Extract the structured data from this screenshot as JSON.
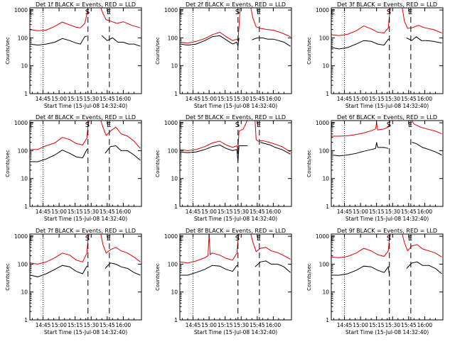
{
  "figure": {
    "axis_labels": {
      "x": "Start Time (15-Jul-08 14:32:40)",
      "y": "Counts/sec"
    },
    "xticks": [
      "14:45",
      "15:00",
      "15:15",
      "15:30",
      "15:45",
      "16:00"
    ],
    "xticks_min": [
      45,
      60,
      75,
      90,
      105,
      120
    ],
    "xlim_min": [
      32.7,
      137
    ],
    "yticks": [
      "1",
      "10",
      "100",
      "1000"
    ],
    "yticks_values": [
      1,
      10,
      100,
      1000
    ],
    "ylim": [
      1,
      1200
    ],
    "marker_labels": {
      "E": "E",
      "S": "S"
    },
    "colors": {
      "events": "#000000",
      "lld": "#e00000",
      "axes": "#000000"
    }
  },
  "chart_data": [
    {
      "type": "line",
      "title": "Det 1f BLACK = Events, RED = LLD",
      "xscale": "minutes",
      "yscale": "log",
      "series": [
        {
          "name": "Events",
          "color": "#000000",
          "x": [
            33,
            40,
            48,
            56,
            63,
            70,
            76,
            80,
            84,
            86,
            86.5,
            96,
            99,
            100,
            105,
            110,
            115,
            120,
            125,
            130,
            136
          ],
          "y": [
            60,
            55,
            60,
            70,
            95,
            80,
            65,
            60,
            110,
            115,
            null,
            null,
            null,
            120,
            80,
            100,
            70,
            70,
            60,
            60,
            50
          ]
        },
        {
          "name": "LLD",
          "color": "#e00000",
          "x": [
            33,
            40,
            48,
            56,
            63,
            70,
            76,
            80,
            84,
            86,
            87,
            88,
            92,
            96,
            99,
            101,
            104,
            108,
            114,
            120,
            128,
            136
          ],
          "y": [
            200,
            180,
            190,
            260,
            370,
            290,
            240,
            230,
            330,
            700,
            1200,
            null,
            null,
            null,
            1200,
            750,
            450,
            400,
            330,
            380,
            280,
            230
          ]
        }
      ],
      "markers": [
        {
          "x": 45,
          "style": "dotted"
        },
        {
          "x": 87,
          "style": "dashed",
          "label": "S"
        },
        {
          "x": 107,
          "style": "dashed",
          "label": "E"
        }
      ]
    },
    {
      "type": "line",
      "title": "Det 2f BLACK = Events, RED = LLD",
      "xscale": "minutes",
      "yscale": "log",
      "series": [
        {
          "name": "Events",
          "color": "#000000",
          "x": [
            33,
            40,
            48,
            56,
            63,
            70,
            76,
            82,
            86,
            87,
            88,
            94,
            96,
            100,
            105,
            110,
            115,
            120,
            125,
            130,
            136
          ],
          "y": [
            60,
            55,
            60,
            80,
            110,
            120,
            85,
            60,
            70,
            50,
            100,
            null,
            null,
            85,
            100,
            100,
            90,
            90,
            80,
            70,
            50
          ]
        },
        {
          "name": "LLD",
          "color": "#e00000",
          "x": [
            33,
            40,
            48,
            56,
            63,
            70,
            76,
            82,
            86,
            87,
            88,
            89,
            93,
            96,
            99,
            101,
            104,
            108,
            114,
            120,
            128,
            136
          ],
          "y": [
            70,
            65,
            75,
            95,
            130,
            160,
            110,
            80,
            90,
            80,
            250,
            1200,
            null,
            null,
            1200,
            500,
            250,
            220,
            200,
            190,
            150,
            110
          ]
        }
      ],
      "markers": [
        {
          "x": 45,
          "style": "dotted"
        },
        {
          "x": 87,
          "style": "dashed",
          "label": "S"
        },
        {
          "x": 107,
          "style": "dashed",
          "label": "E"
        }
      ]
    },
    {
      "type": "line",
      "title": "Det 3f BLACK = Events, RED = LLD",
      "xscale": "minutes",
      "yscale": "log",
      "series": [
        {
          "name": "Events",
          "color": "#000000",
          "x": [
            33,
            40,
            48,
            56,
            63,
            70,
            76,
            82,
            86,
            87,
            88,
            96,
            99,
            103,
            108,
            112,
            117,
            122,
            128,
            136
          ],
          "y": [
            45,
            40,
            45,
            60,
            80,
            75,
            60,
            55,
            90,
            90,
            null,
            null,
            null,
            100,
            80,
            110,
            80,
            80,
            75,
            65
          ]
        },
        {
          "name": "LLD",
          "color": "#e00000",
          "x": [
            33,
            40,
            48,
            56,
            63,
            70,
            76,
            82,
            86,
            87,
            88,
            92,
            96,
            99,
            101,
            104,
            108,
            114,
            120,
            128,
            136
          ],
          "y": [
            130,
            120,
            135,
            180,
            270,
            210,
            160,
            150,
            230,
            600,
            1200,
            null,
            null,
            1200,
            400,
            220,
            230,
            280,
            230,
            200,
            150
          ]
        }
      ],
      "markers": [
        {
          "x": 45,
          "style": "dotted"
        },
        {
          "x": 87,
          "style": "dashed",
          "label": "S"
        },
        {
          "x": 107,
          "style": "dashed",
          "label": "E"
        }
      ]
    },
    {
      "type": "line",
      "title": "Det 4f BLACK = Events, RED = LLD",
      "xscale": "minutes",
      "yscale": "log",
      "series": [
        {
          "name": "Events",
          "color": "#000000",
          "x": [
            33,
            40,
            48,
            56,
            63,
            70,
            76,
            82,
            86,
            87,
            88,
            96,
            99,
            103,
            108,
            113,
            118,
            124,
            130,
            136
          ],
          "y": [
            40,
            40,
            50,
            70,
            105,
            80,
            60,
            55,
            110,
            110,
            null,
            null,
            null,
            80,
            140,
            150,
            100,
            100,
            70,
            45
          ]
        },
        {
          "name": "LLD",
          "color": "#e00000",
          "x": [
            33,
            40,
            48,
            56,
            63,
            70,
            76,
            82,
            86,
            87,
            88,
            92,
            96,
            99,
            101,
            104,
            108,
            113,
            118,
            124,
            130,
            136
          ],
          "y": [
            110,
            110,
            150,
            190,
            300,
            250,
            180,
            160,
            280,
            700,
            1200,
            null,
            null,
            1200,
            700,
            350,
            500,
            700,
            400,
            330,
            220,
            120
          ]
        }
      ],
      "markers": [
        {
          "x": 45,
          "style": "dotted"
        },
        {
          "x": 87,
          "style": "dashed",
          "label": "S"
        },
        {
          "x": 107,
          "style": "dashed",
          "label": "E"
        }
      ]
    },
    {
      "type": "line",
      "title": "Det 5f BLACK = Events, RED = LLD",
      "xscale": "minutes",
      "yscale": "log",
      "series": [
        {
          "name": "Events",
          "color": "#000000",
          "x": [
            33,
            40,
            48,
            56,
            63,
            70,
            76,
            82,
            86,
            87,
            88,
            92,
            96,
            100,
            104,
            108,
            112,
            117,
            122,
            128,
            136
          ],
          "y": [
            90,
            85,
            90,
            110,
            140,
            160,
            120,
            100,
            110,
            40,
            150,
            150,
            150,
            null,
            null,
            200,
            180,
            160,
            130,
            110,
            75
          ]
        },
        {
          "name": "LLD",
          "color": "#e00000",
          "x": [
            33,
            40,
            48,
            56,
            63,
            70,
            76,
            82,
            86,
            87,
            88,
            92,
            96,
            100,
            103,
            104,
            106,
            110,
            116,
            122,
            128,
            136
          ],
          "y": [
            110,
            100,
            110,
            140,
            190,
            220,
            160,
            130,
            150,
            110,
            500,
            600,
            1300,
            2700,
            1200,
            250,
            220,
            230,
            200,
            170,
            140,
            90
          ]
        }
      ],
      "markers": [
        {
          "x": 45,
          "style": "dotted"
        },
        {
          "x": 87,
          "style": "dashed",
          "label": "S"
        },
        {
          "x": 107,
          "style": "dashed",
          "label": "E"
        }
      ]
    },
    {
      "type": "line",
      "title": "Det 6f BLACK = Events, RED = LLD",
      "xscale": "minutes",
      "yscale": "log",
      "series": [
        {
          "name": "Events",
          "color": "#000000",
          "x": [
            33,
            40,
            48,
            56,
            63,
            70,
            74,
            75,
            76,
            82,
            86,
            88,
            92,
            96,
            100,
            104,
            108,
            112,
            118,
            124,
            130,
            136
          ],
          "y": [
            70,
            65,
            70,
            80,
            95,
            110,
            120,
            200,
            130,
            130,
            120,
            null,
            null,
            null,
            null,
            null,
            200,
            180,
            130,
            110,
            90,
            70
          ]
        },
        {
          "name": "LLD",
          "color": "#e00000",
          "x": [
            33,
            40,
            48,
            56,
            63,
            70,
            74,
            75,
            76,
            82,
            86,
            88,
            92,
            96,
            100,
            103,
            106,
            110,
            116,
            122,
            130,
            136
          ],
          "y": [
            330,
            330,
            340,
            380,
            430,
            520,
            600,
            1000,
            550,
            600,
            700,
            1300,
            1800,
            1500,
            2600,
            3000,
            1600,
            900,
            700,
            600,
            500,
            400
          ]
        }
      ],
      "markers": [
        {
          "x": 45,
          "style": "dotted"
        },
        {
          "x": 87,
          "style": "dashed",
          "label": "S"
        },
        {
          "x": 107,
          "style": "dashed",
          "label": "E"
        }
      ]
    },
    {
      "type": "line",
      "title": "Det 7f BLACK = Events, RED = LLD",
      "xscale": "minutes",
      "yscale": "log",
      "series": [
        {
          "name": "Events",
          "color": "#000000",
          "x": [
            33,
            40,
            48,
            56,
            63,
            70,
            76,
            82,
            86,
            87,
            88,
            96,
            99,
            103,
            108,
            113,
            118,
            124,
            130,
            136
          ],
          "y": [
            40,
            35,
            45,
            65,
            90,
            80,
            55,
            45,
            85,
            85,
            null,
            null,
            null,
            70,
            110,
            100,
            80,
            70,
            50,
            40
          ]
        },
        {
          "name": "LLD",
          "color": "#e00000",
          "x": [
            33,
            40,
            48,
            56,
            63,
            70,
            76,
            82,
            86,
            87,
            88,
            92,
            96,
            99,
            101,
            104,
            108,
            113,
            118,
            124,
            130,
            136
          ],
          "y": [
            110,
            100,
            120,
            170,
            250,
            210,
            140,
            120,
            250,
            700,
            1200,
            null,
            null,
            1200,
            500,
            250,
            330,
            400,
            300,
            250,
            180,
            120
          ]
        }
      ],
      "markers": [
        {
          "x": 45,
          "style": "dotted"
        },
        {
          "x": 87,
          "style": "dashed",
          "label": "S"
        },
        {
          "x": 107,
          "style": "dashed",
          "label": "E"
        }
      ]
    },
    {
      "type": "line",
      "title": "Det 8f BLACK = Events, RED = LLD",
      "xscale": "minutes",
      "yscale": "log",
      "series": [
        {
          "name": "Events",
          "color": "#000000",
          "x": [
            33,
            40,
            48,
            56,
            63,
            70,
            76,
            82,
            86,
            87,
            88,
            96,
            99,
            103,
            108,
            113,
            118,
            124,
            130,
            136
          ],
          "y": [
            40,
            40,
            50,
            65,
            90,
            85,
            65,
            55,
            90,
            85,
            null,
            null,
            null,
            80,
            120,
            130,
            100,
            100,
            80,
            50
          ]
        },
        {
          "name": "LLD",
          "color": "#e00000",
          "x": [
            33,
            40,
            48,
            56,
            59,
            60,
            61,
            63,
            70,
            76,
            82,
            86,
            87,
            88,
            92,
            96,
            99,
            101,
            104,
            108,
            113,
            118,
            124,
            130,
            136
          ],
          "y": [
            120,
            110,
            130,
            170,
            200,
            1200,
            220,
            250,
            210,
            160,
            140,
            250,
            700,
            1200,
            null,
            null,
            1200,
            600,
            280,
            370,
            400,
            300,
            260,
            200,
            150
          ]
        }
      ],
      "markers": [
        {
          "x": 45,
          "style": "dotted"
        },
        {
          "x": 87,
          "style": "dashed",
          "label": "S"
        },
        {
          "x": 107,
          "style": "dashed",
          "label": "E"
        }
      ]
    },
    {
      "type": "line",
      "title": "Det 9f BLACK = Events, RED = LLD",
      "xscale": "minutes",
      "yscale": "log",
      "series": [
        {
          "name": "Events",
          "color": "#000000",
          "x": [
            33,
            40,
            48,
            56,
            63,
            70,
            76,
            82,
            86,
            87,
            88,
            96,
            99,
            103,
            108,
            113,
            118,
            124,
            130,
            136
          ],
          "y": [
            40,
            40,
            45,
            60,
            85,
            80,
            60,
            50,
            80,
            40,
            null,
            null,
            null,
            70,
            110,
            120,
            90,
            90,
            70,
            45
          ]
        },
        {
          "name": "LLD",
          "color": "#e00000",
          "x": [
            33,
            40,
            48,
            56,
            63,
            70,
            76,
            82,
            86,
            87,
            88,
            92,
            96,
            99,
            101,
            104,
            108,
            113,
            118,
            124,
            130,
            136
          ],
          "y": [
            180,
            170,
            190,
            250,
            370,
            300,
            220,
            190,
            300,
            800,
            1200,
            null,
            null,
            1200,
            600,
            300,
            450,
            500,
            350,
            300,
            250,
            180
          ]
        }
      ],
      "markers": [
        {
          "x": 45,
          "style": "dotted"
        },
        {
          "x": 87,
          "style": "dashed",
          "label": "S"
        },
        {
          "x": 107,
          "style": "dashed",
          "label": "E"
        }
      ]
    }
  ]
}
